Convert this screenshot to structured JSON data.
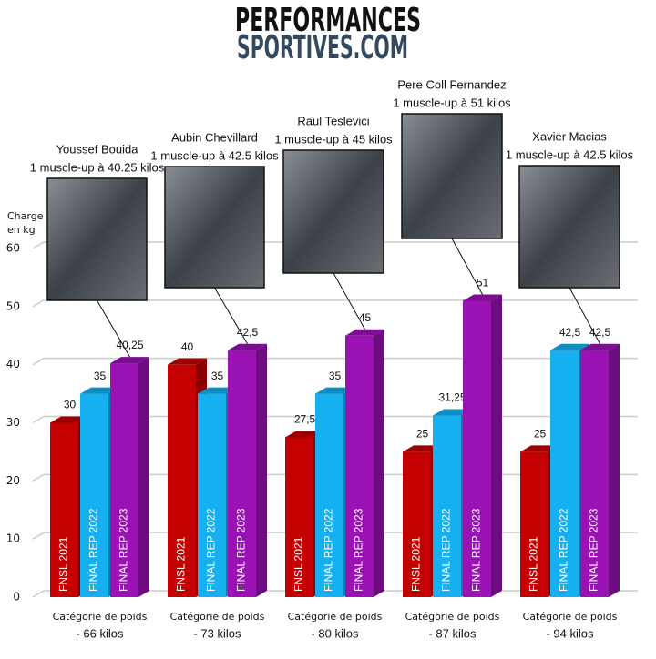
{
  "chart_data": {
    "type": "bar3d",
    "title": [
      "PERFORMANCES",
      "SPORTIVES.COM"
    ],
    "ylabel": [
      "Charge",
      "en kg"
    ],
    "categories": [
      [
        "Catégorie de poids",
        "- 66 kilos"
      ],
      [
        "Catégorie de poids",
        "- 73 kilos"
      ],
      [
        "Catégorie de poids",
        "- 80 kilos"
      ],
      [
        "Catégorie de poids",
        "- 87 kilos"
      ],
      [
        "Catégorie de poids",
        "- 94 kilos"
      ]
    ],
    "series": [
      {
        "name": "FNSL 2021",
        "color": "#c40000",
        "values": [
          30,
          40,
          27.5,
          25,
          25
        ],
        "value_labels": [
          "30",
          "40",
          "27,5",
          "25",
          "25"
        ]
      },
      {
        "name": "FINAL REP 2022",
        "color": "#16b0f0",
        "values": [
          35,
          35,
          35,
          31.25,
          42.5
        ],
        "value_labels": [
          "35",
          "35",
          "35",
          "31,25",
          "42,5"
        ]
      },
      {
        "name": "FINAL REP 2023",
        "color": "#9a12b4",
        "values": [
          40.25,
          42.5,
          45,
          51,
          42.5
        ],
        "value_labels": [
          "40,25",
          "42,5",
          "45",
          "51",
          "42,5"
        ]
      }
    ],
    "annotations": [
      {
        "name": "Youssef Bouida",
        "text": "1 muscle-up à 40.25 kilos"
      },
      {
        "name": "Aubin Chevillard",
        "text": "1 muscle-up à 42.5 kilos"
      },
      {
        "name": "Raul Teslevici",
        "text": "1 muscle-up à 45 kilos"
      },
      {
        "name": "Pere Coll Fernandez",
        "text": "1 muscle-up à 51 kilos"
      },
      {
        "name": "Xavier Macias",
        "text": "1 muscle-up à 42.5 kilos"
      }
    ],
    "ylim": [
      0,
      60
    ],
    "yticks": [
      0,
      10,
      20,
      30,
      40,
      50,
      60
    ],
    "grid": true
  }
}
